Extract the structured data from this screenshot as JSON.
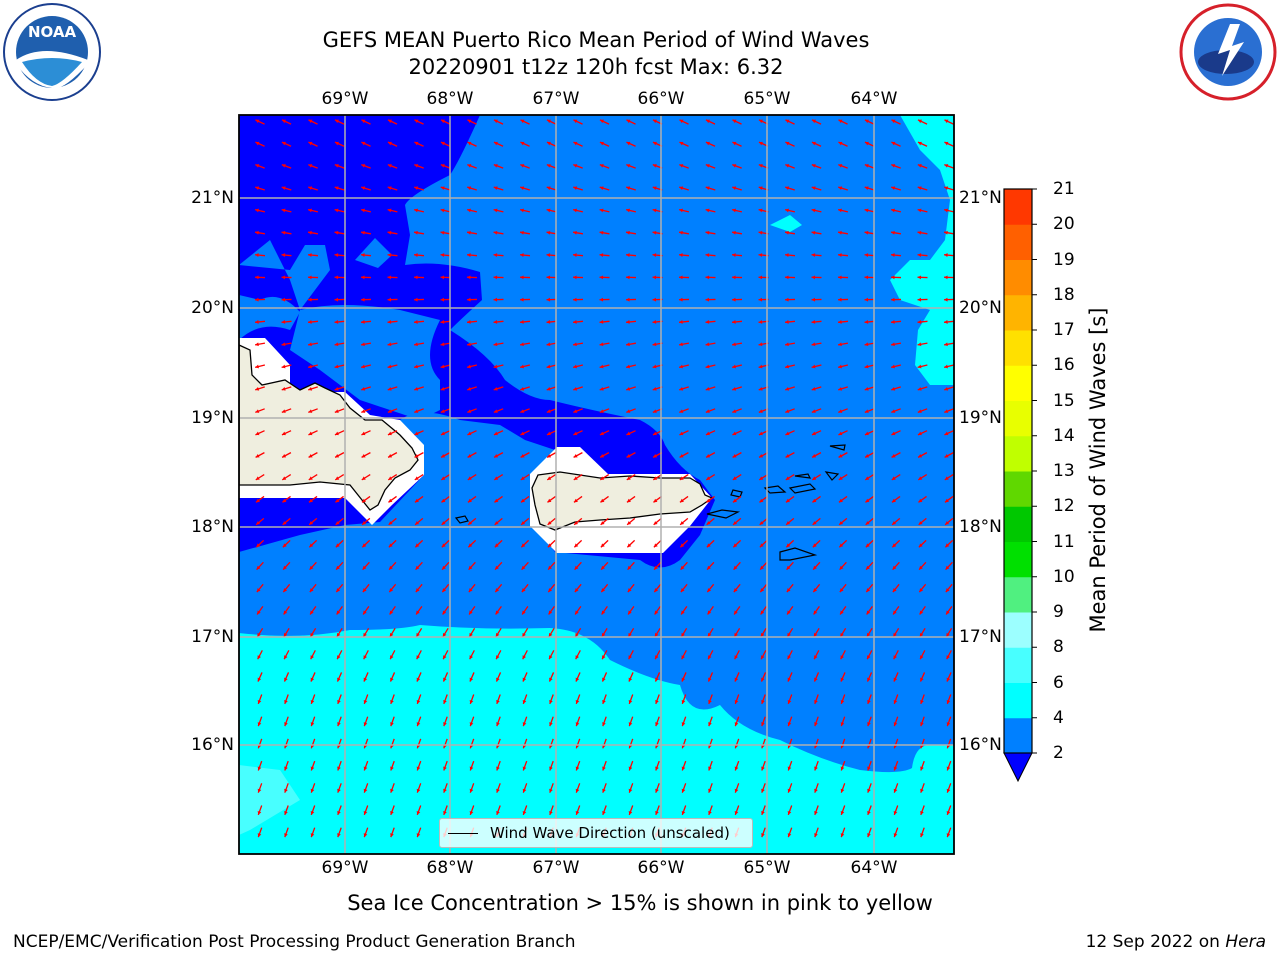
{
  "title": {
    "line1": "GEFS MEAN Puerto Rico Mean Period of Wind Waves",
    "line2": "20220901 t12z 120h fcst   Max: 6.32"
  },
  "logos": {
    "left": {
      "name": "noaa-logo",
      "text": "NOAA",
      "ring_text": "NATIONAL OCEANIC AND ATMOSPHERIC ADMINISTRATION · U.S. DEPARTMENT OF COMMERCE"
    },
    "right": {
      "name": "nws-logo",
      "ring_text": "NATIONAL WEATHER SERVICE"
    }
  },
  "map": {
    "lon_labels": [
      "69°W",
      "68°W",
      "67°W",
      "66°W",
      "65°W",
      "64°W"
    ],
    "lat_labels": [
      "21°N",
      "20°N",
      "19°N",
      "18°N",
      "17°N",
      "16°N"
    ],
    "legend_label": "Wind Wave Direction (unscaled)",
    "arrow_color": "#ff0000",
    "land_color": "#efeedf"
  },
  "colorbar": {
    "label": "Mean Period of Wind Waves [s]",
    "ticks": [
      "2",
      "4",
      "6",
      "8",
      "9",
      "10",
      "11",
      "12",
      "13",
      "14",
      "15",
      "16",
      "17",
      "18",
      "19",
      "20",
      "21"
    ],
    "colors": [
      "#0080ff",
      "#00ffff",
      "#48ffff",
      "#9cffff",
      "#50f080",
      "#00e000",
      "#00c800",
      "#60d800",
      "#c0ff00",
      "#e8ff00",
      "#ffff00",
      "#ffe000",
      "#ffb400",
      "#ff8c00",
      "#ff6000",
      "#ff3800",
      "#ff0000"
    ],
    "extend_color": "#0000ff"
  },
  "caption": "Sea Ice Concentration > 15% is shown in pink to yellow",
  "footer": {
    "left": "NCEP/EMC/Verification Post Processing Product Generation Branch",
    "right_prefix": "12 Sep 2022 on ",
    "right_host": "Hera"
  }
}
